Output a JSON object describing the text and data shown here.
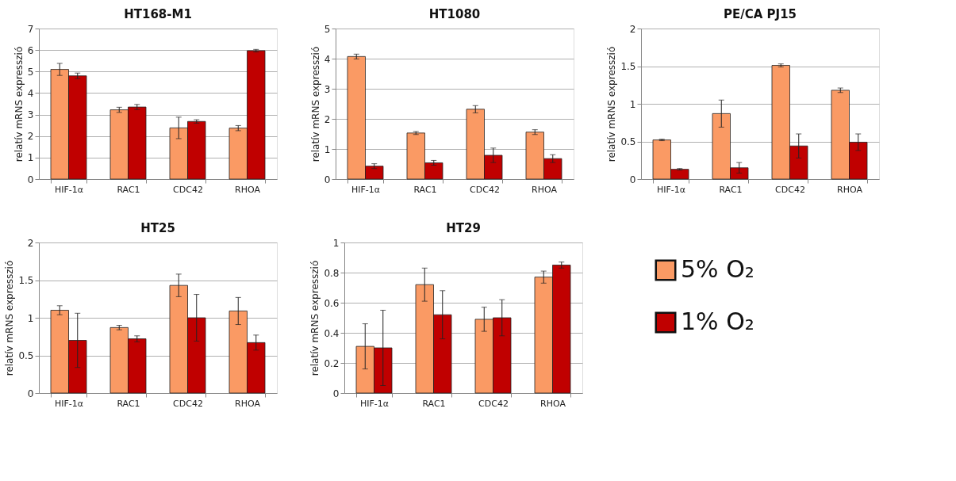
{
  "chart_data": [
    {
      "type": "bar",
      "title": "HT168-M1",
      "ylabel": "relatív mRNS expresszió",
      "categories": [
        "HIF-1α",
        "RAC1",
        "CDC42",
        "RHOA"
      ],
      "ylim": [
        0,
        7
      ],
      "yticks": [
        0,
        1,
        2,
        3,
        4,
        5,
        6,
        7
      ],
      "grid": "y",
      "legend": "right",
      "series": [
        {
          "name": "5% O₂",
          "color": "#fa9a64",
          "values": [
            5.1,
            3.22,
            2.38,
            2.37
          ],
          "errors": [
            0.28,
            0.12,
            0.5,
            0.12
          ]
        },
        {
          "name": "1% O₂",
          "color": "#c00000",
          "values": [
            4.8,
            3.35,
            2.68,
            5.97
          ],
          "errors": [
            0.13,
            0.12,
            0.08,
            0.06
          ]
        }
      ]
    },
    {
      "type": "bar",
      "title": "HT1080",
      "ylabel": "relatív mRNS expresszió",
      "categories": [
        "HIF-1α",
        "RAC1",
        "CDC42",
        "RHOA"
      ],
      "ylim": [
        0,
        5
      ],
      "yticks": [
        0,
        1,
        2,
        3,
        4,
        5
      ],
      "grid": "y",
      "series": [
        {
          "color": "#fa9a64",
          "values": [
            4.07,
            1.53,
            2.32,
            1.56
          ],
          "errors": [
            0.08,
            0.05,
            0.12,
            0.08
          ]
        },
        {
          "color": "#c00000",
          "values": [
            0.43,
            0.54,
            0.79,
            0.68
          ],
          "errors": [
            0.08,
            0.08,
            0.24,
            0.13
          ]
        }
      ]
    },
    {
      "type": "bar",
      "title": "PE/CA PJ15",
      "ylabel": "relatív mRNS expresszió",
      "categories": [
        "HIF-1α",
        "RAC1",
        "CDC42",
        "RHOA"
      ],
      "ylim": [
        0,
        2
      ],
      "yticks": [
        0,
        0.5,
        1,
        1.5,
        2
      ],
      "grid": "y",
      "series": [
        {
          "color": "#fa9a64",
          "values": [
            0.52,
            0.87,
            1.51,
            1.18
          ],
          "errors": [
            0.01,
            0.18,
            0.02,
            0.03
          ]
        },
        {
          "color": "#c00000",
          "values": [
            0.13,
            0.15,
            0.44,
            0.49
          ],
          "errors": [
            0.01,
            0.07,
            0.16,
            0.11
          ]
        }
      ]
    },
    {
      "type": "bar",
      "title": "HT25",
      "ylabel": "relatív mRNS expresszió",
      "categories": [
        "HIF-1α",
        "RAC1",
        "CDC42",
        "RHOA"
      ],
      "ylim": [
        0,
        2
      ],
      "yticks": [
        0,
        0.5,
        1,
        1.5,
        2
      ],
      "grid": "y",
      "series": [
        {
          "color": "#fa9a64",
          "values": [
            1.1,
            0.87,
            1.43,
            1.09
          ],
          "errors": [
            0.06,
            0.03,
            0.15,
            0.18
          ]
        },
        {
          "color": "#c00000",
          "values": [
            0.7,
            0.72,
            1.0,
            0.67
          ],
          "errors": [
            0.36,
            0.04,
            0.31,
            0.1
          ]
        }
      ]
    },
    {
      "type": "bar",
      "title": "HT29",
      "ylabel": "relatív mRNS expresszió",
      "categories": [
        "HIF-1α",
        "RAC1",
        "CDC42",
        "RHOA"
      ],
      "ylim": [
        0,
        1
      ],
      "yticks": [
        0,
        0.2,
        0.4,
        0.6,
        0.8,
        1
      ],
      "grid": "y",
      "series": [
        {
          "color": "#fa9a64",
          "values": [
            0.31,
            0.72,
            0.49,
            0.77
          ],
          "errors": [
            0.15,
            0.11,
            0.08,
            0.04
          ]
        },
        {
          "color": "#c00000",
          "values": [
            0.3,
            0.52,
            0.5,
            0.85
          ],
          "errors": [
            0.25,
            0.16,
            0.12,
            0.02
          ]
        }
      ]
    }
  ]
}
